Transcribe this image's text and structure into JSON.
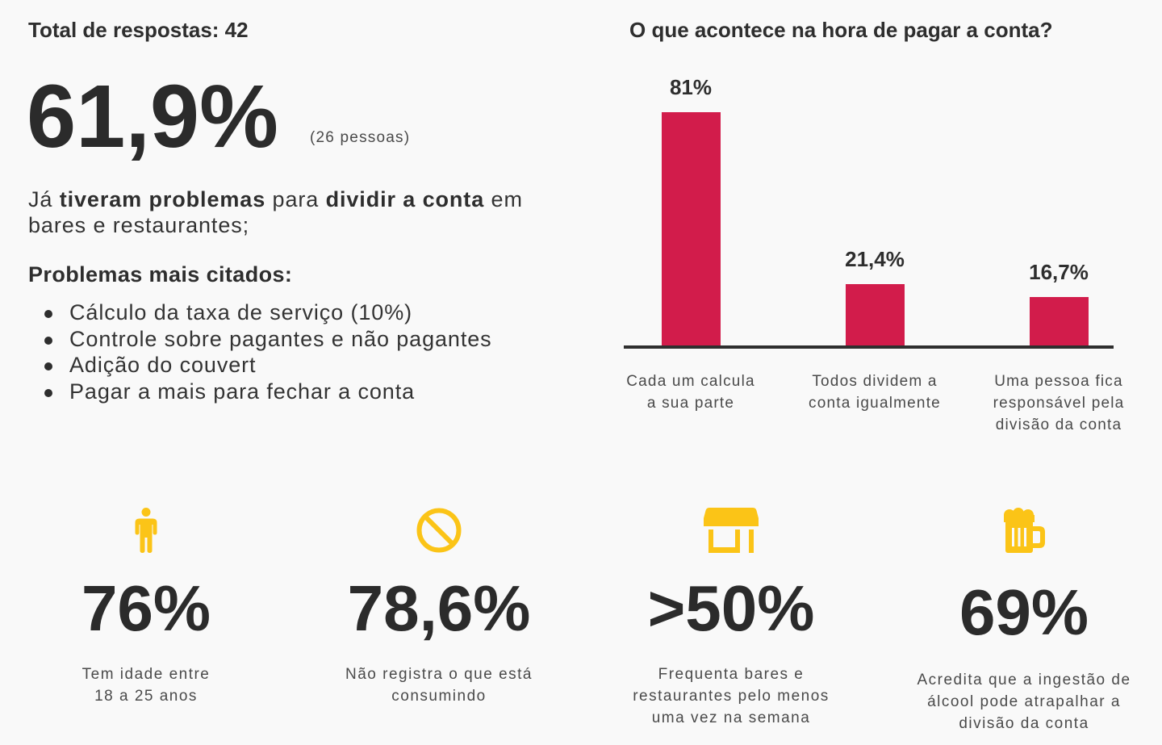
{
  "colors": {
    "background": "#f9f9f9",
    "text": "#2e2e2e",
    "muted": "#4a4a4a",
    "bar": "#d21c4b",
    "axis": "#2f2f2f",
    "icon": "#fbc417"
  },
  "summary": {
    "total_label": "Total de respostas: 42",
    "headline_value": "61,9%",
    "headline_count": "(26 pessoas)",
    "intro": [
      "Já ",
      "tiveram problemas",
      " para ",
      "dividir a conta",
      " em\nbares e restaurantes;"
    ],
    "problems_title": "Problemas mais citados:",
    "problems": [
      "Cálculo da taxa de serviço (10%)",
      "Controle sobre pagantes e não pagantes",
      "Adição do couvert",
      "Pagar a mais para fechar a conta"
    ]
  },
  "chart_data": {
    "type": "bar",
    "title": "O que acontece na hora de pagar a conta?",
    "categories": [
      "Cada um calcula\na sua parte",
      "Todos dividem a\nconta igualmente",
      "Uma pessoa fica\nresponsável pela\ndivisão da conta"
    ],
    "values": [
      81,
      21.4,
      16.7
    ],
    "value_labels": [
      "81%",
      "21,4%",
      "16,7%"
    ],
    "grid": false
  },
  "stats": [
    {
      "icon": "person-icon",
      "value": "76%",
      "caption": "Tem idade entre\n18 a 25 anos"
    },
    {
      "icon": "block-icon",
      "value": "78,6%",
      "caption": "Não registra o que está\nconsumindo"
    },
    {
      "icon": "store-icon",
      "value": ">50%",
      "caption": "Frequenta bares e\nrestaurantes pelo menos\numa vez na semana"
    },
    {
      "icon": "beer-mug-icon",
      "value": "69%",
      "caption": "Acredita que a ingestão de\nálcool pode atrapalhar a\ndivisão da conta"
    }
  ]
}
